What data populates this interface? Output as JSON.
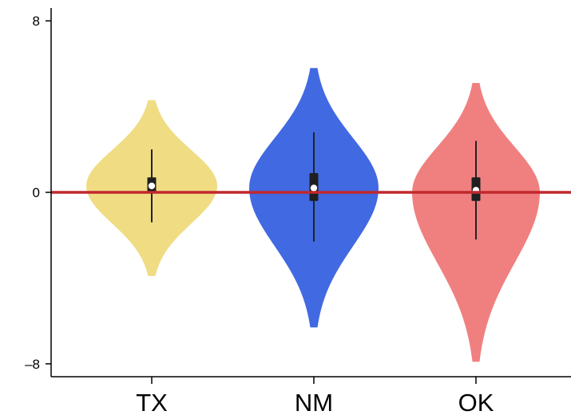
{
  "chart_data": {
    "type": "violin",
    "title": "",
    "xlabel": "",
    "ylabel": "",
    "categories": [
      "TX",
      "NM",
      "OK"
    ],
    "colors": [
      "#F0DC82",
      "#4169E1",
      "#F08080"
    ],
    "ylim": [
      -8.6,
      8.6
    ],
    "yticks": [
      8,
      0,
      -8
    ],
    "ytick_labels": [
      "8",
      "0",
      "–8"
    ],
    "reference_line": {
      "y": 0,
      "color": "#C1282D"
    },
    "grid": false,
    "series": [
      {
        "name": "TX",
        "kde_min": -3.9,
        "kde_max": 4.3,
        "mode": 0.3,
        "mode_half_width": 0.8,
        "whisker_low": -1.4,
        "whisker_high": 2.0,
        "q1": 0.0,
        "q3": 0.7,
        "median": 0.3
      },
      {
        "name": "NM",
        "kde_min": -6.3,
        "kde_max": 5.8,
        "mode": 0.2,
        "mode_half_width": 0.79,
        "whisker_low": -2.3,
        "whisker_high": 2.8,
        "q1": -0.4,
        "q3": 0.9,
        "median": 0.2
      },
      {
        "name": "OK",
        "kde_min": -7.9,
        "kde_max": 5.1,
        "mode": 0.0,
        "mode_half_width": 0.78,
        "whisker_low": -2.2,
        "whisker_high": 2.4,
        "q1": -0.4,
        "q3": 0.7,
        "median": 0.1
      }
    ]
  }
}
